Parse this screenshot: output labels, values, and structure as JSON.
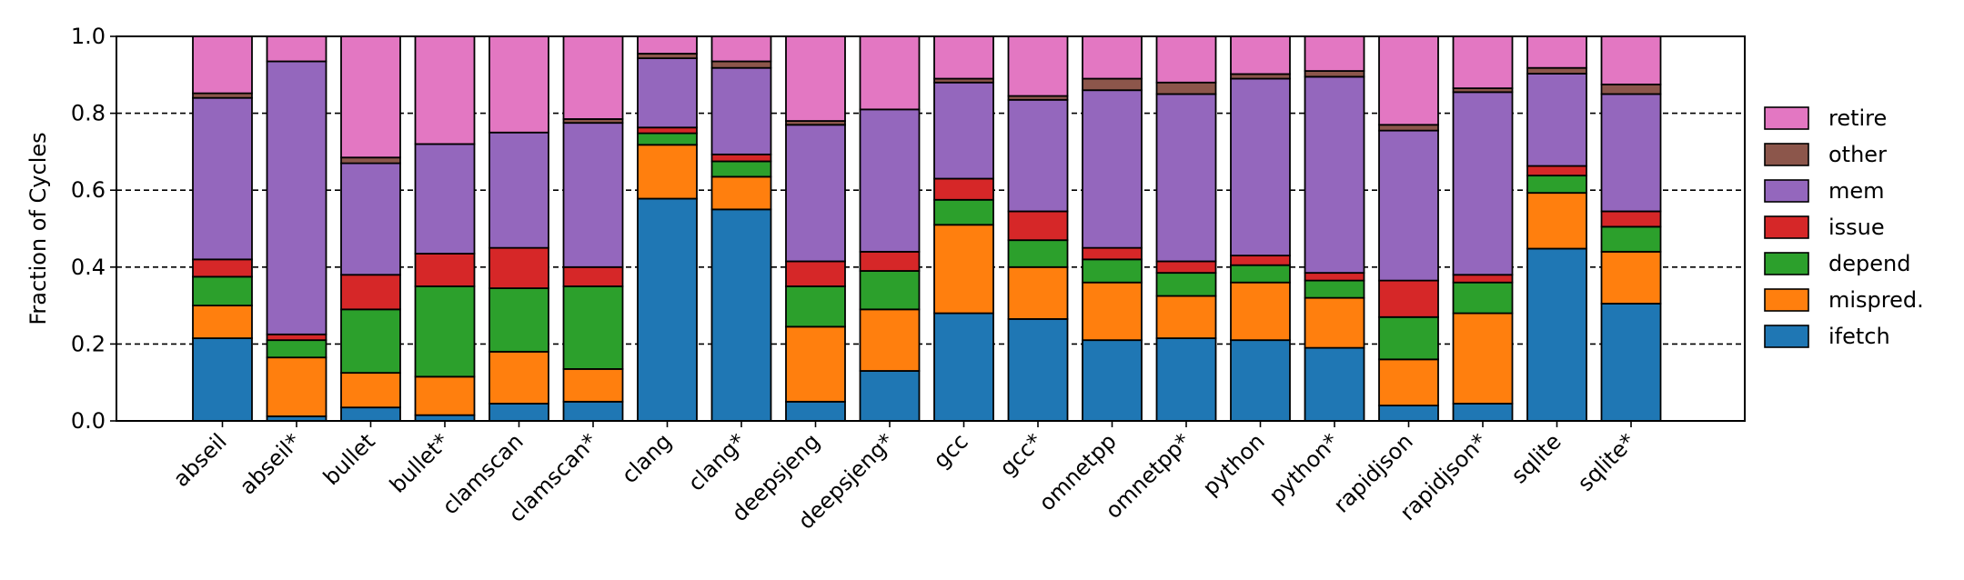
{
  "chart_data": {
    "type": "bar",
    "stacked": true,
    "title": "",
    "xlabel": "",
    "ylabel": "Fraction of Cycles",
    "ylim": [
      0,
      1.0
    ],
    "yticks": [
      "0.0",
      "0.2",
      "0.4",
      "0.6",
      "0.8",
      "1.0"
    ],
    "gridlines": [
      0.2,
      0.4,
      0.6,
      0.8
    ],
    "legend_position": "right",
    "categories": [
      "abseil",
      "abseil*",
      "bullet",
      "bullet*",
      "clamscan",
      "clamscan*",
      "clang",
      "clang*",
      "deepsjeng",
      "deepsjeng*",
      "gcc",
      "gcc*",
      "omnetpp",
      "omnetpp*",
      "python",
      "python*",
      "rapidjson",
      "rapidjson*",
      "sqlite",
      "sqlite*"
    ],
    "series": [
      {
        "name": "ifetch",
        "color": "#1f77b4",
        "values": [
          0.215,
          0.012,
          0.035,
          0.015,
          0.045,
          0.05,
          0.578,
          0.55,
          0.05,
          0.13,
          0.28,
          0.265,
          0.21,
          0.215,
          0.21,
          0.19,
          0.04,
          0.045,
          0.448,
          0.305
        ]
      },
      {
        "name": "mispred.",
        "color": "#ff7f0e",
        "values": [
          0.085,
          0.153,
          0.09,
          0.1,
          0.135,
          0.085,
          0.14,
          0.085,
          0.195,
          0.16,
          0.23,
          0.135,
          0.15,
          0.11,
          0.15,
          0.13,
          0.12,
          0.235,
          0.145,
          0.135
        ]
      },
      {
        "name": "depend",
        "color": "#2ca02c",
        "values": [
          0.075,
          0.045,
          0.165,
          0.235,
          0.165,
          0.215,
          0.03,
          0.04,
          0.105,
          0.1,
          0.065,
          0.07,
          0.06,
          0.06,
          0.045,
          0.045,
          0.11,
          0.08,
          0.045,
          0.065
        ]
      },
      {
        "name": "issue",
        "color": "#d62728",
        "values": [
          0.045,
          0.015,
          0.09,
          0.085,
          0.105,
          0.05,
          0.015,
          0.018,
          0.065,
          0.05,
          0.055,
          0.075,
          0.03,
          0.03,
          0.025,
          0.02,
          0.095,
          0.02,
          0.025,
          0.04
        ]
      },
      {
        "name": "mem",
        "color": "#9467bd",
        "values": [
          0.42,
          0.71,
          0.29,
          0.285,
          0.3,
          0.375,
          0.18,
          0.225,
          0.355,
          0.37,
          0.25,
          0.29,
          0.41,
          0.435,
          0.46,
          0.51,
          0.39,
          0.475,
          0.24,
          0.305
        ]
      },
      {
        "name": "other",
        "color": "#8c564b",
        "values": [
          0.012,
          0.0,
          0.015,
          0.0,
          0.0,
          0.01,
          0.012,
          0.017,
          0.01,
          0.0,
          0.01,
          0.01,
          0.03,
          0.03,
          0.012,
          0.015,
          0.015,
          0.01,
          0.015,
          0.025
        ]
      },
      {
        "name": "retire",
        "color": "#e377c2",
        "values": [
          0.148,
          0.065,
          0.315,
          0.28,
          0.25,
          0.215,
          0.045,
          0.065,
          0.22,
          0.19,
          0.11,
          0.155,
          0.11,
          0.12,
          0.098,
          0.09,
          0.23,
          0.135,
          0.082,
          0.125
        ]
      }
    ],
    "legend_order": [
      "retire",
      "other",
      "mem",
      "issue",
      "depend",
      "mispred.",
      "ifetch"
    ]
  }
}
